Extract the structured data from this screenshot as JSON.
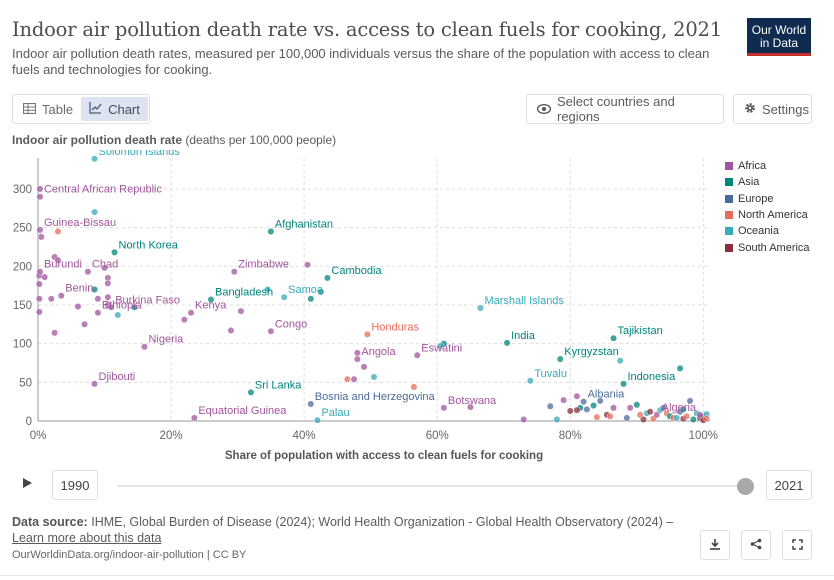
{
  "header": {
    "title": "Indoor air pollution death rate vs. access to clean fuels for cooking, 2021",
    "subtitle": "Indoor air pollution death rates, measured per 100,000 individuals versus the share of the population with access to clean fuels and technologies for cooking.",
    "logo_line1": "Our World",
    "logo_line2": "in Data"
  },
  "toolbar": {
    "table_label": "Table",
    "chart_label": "Chart",
    "select_label": "Select countries and regions",
    "settings_label": "Settings"
  },
  "colors": {
    "Africa": "#a2559c",
    "Asia": "#00847e",
    "Europe": "#4c6a9c",
    "North America": "#e56e5a",
    "Oceania": "#38aaba",
    "South America": "#883039"
  },
  "chart_data": {
    "type": "scatter",
    "ylabel_bold": "Indoor air pollution death rate",
    "ylabel_rest": "(deaths per 100,000 people)",
    "xlabel": "Share of population with access to clean fuels for cooking",
    "xlim": [
      0,
      101
    ],
    "ylim": [
      0,
      340
    ],
    "x_ticks": [
      {
        "v": 0,
        "label": "0%"
      },
      {
        "v": 20,
        "label": "20%"
      },
      {
        "v": 40,
        "label": "40%"
      },
      {
        "v": 60,
        "label": "60%"
      },
      {
        "v": 80,
        "label": "80%"
      },
      {
        "v": 100,
        "label": "100%"
      }
    ],
    "y_ticks": [
      {
        "v": 0,
        "label": "0"
      },
      {
        "v": 50,
        "label": "50"
      },
      {
        "v": 100,
        "label": "100"
      },
      {
        "v": 150,
        "label": "150"
      },
      {
        "v": 200,
        "label": "200"
      },
      {
        "v": 250,
        "label": "250"
      },
      {
        "v": 300,
        "label": "300"
      }
    ],
    "grid": true,
    "legend": [
      "Africa",
      "Asia",
      "Europe",
      "North America",
      "Oceania",
      "South America"
    ],
    "legend_position": "right",
    "points": [
      {
        "x": 8.5,
        "y": 339,
        "r": "Oceania",
        "label": "Solomon Islands"
      },
      {
        "x": 0.3,
        "y": 290,
        "r": "Africa",
        "label": "Central African Republic"
      },
      {
        "x": 0.3,
        "y": 247,
        "r": "Africa",
        "label": "Guinea-Bissau"
      },
      {
        "x": 0.3,
        "y": 193,
        "r": "Africa",
        "label": "Burundi"
      },
      {
        "x": 7.5,
        "y": 193,
        "r": "Africa",
        "label": "Chad"
      },
      {
        "x": 11.5,
        "y": 218,
        "r": "Asia",
        "label": "North Korea"
      },
      {
        "x": 3.5,
        "y": 162,
        "r": "Africa",
        "label": "Benin"
      },
      {
        "x": 11,
        "y": 147,
        "r": "Africa",
        "label": "Burkina Faso"
      },
      {
        "x": 9,
        "y": 140,
        "r": "Africa",
        "label": "Ethiopia"
      },
      {
        "x": 16,
        "y": 96,
        "r": "Africa",
        "label": "Nigeria"
      },
      {
        "x": 8.5,
        "y": 48,
        "r": "Africa",
        "label": "Djibouti"
      },
      {
        "x": 35,
        "y": 245,
        "r": "Asia",
        "label": "Afghanistan"
      },
      {
        "x": 29.5,
        "y": 193,
        "r": "Africa",
        "label": "Zimbabwe"
      },
      {
        "x": 43.5,
        "y": 185,
        "r": "Asia",
        "label": "Cambodia"
      },
      {
        "x": 26,
        "y": 157,
        "r": "Asia",
        "label": "Bangladesh"
      },
      {
        "x": 37,
        "y": 160,
        "r": "Oceania",
        "label": "Samoa"
      },
      {
        "x": 23,
        "y": 140,
        "r": "Africa",
        "label": "Kenya"
      },
      {
        "x": 35,
        "y": 116,
        "r": "Africa",
        "label": "Congo"
      },
      {
        "x": 32,
        "y": 37,
        "r": "Asia",
        "label": "Sri Lanka"
      },
      {
        "x": 23.5,
        "y": 4,
        "r": "Africa",
        "label": "Equatorial Guinea"
      },
      {
        "x": 41,
        "y": 22,
        "r": "Europe",
        "label": "Bosnia and Herzegovina"
      },
      {
        "x": 42,
        "y": 1,
        "r": "Oceania",
        "label": "Palau"
      },
      {
        "x": 49.5,
        "y": 112,
        "r": "North America",
        "label": "Honduras"
      },
      {
        "x": 48,
        "y": 80,
        "r": "Africa",
        "label": "Angola"
      },
      {
        "x": 57,
        "y": 85,
        "r": "Africa",
        "label": "Eswatini"
      },
      {
        "x": 66.5,
        "y": 146,
        "r": "Oceania",
        "label": "Marshall Islands"
      },
      {
        "x": 70.5,
        "y": 101,
        "r": "Asia",
        "label": "India"
      },
      {
        "x": 61,
        "y": 17,
        "r": "Africa",
        "label": "Botswana"
      },
      {
        "x": 86.5,
        "y": 107,
        "r": "Asia",
        "label": "Tajikistan"
      },
      {
        "x": 78.5,
        "y": 80,
        "r": "Asia",
        "label": "Kyrgyzstan"
      },
      {
        "x": 74,
        "y": 52,
        "r": "Oceania",
        "label": "Tuvalu"
      },
      {
        "x": 88,
        "y": 48,
        "r": "Asia",
        "label": "Indonesia"
      },
      {
        "x": 82,
        "y": 25,
        "r": "Europe",
        "label": "Albania"
      },
      {
        "x": 99.5,
        "y": 8,
        "r": "Africa",
        "label": "Algeria"
      },
      {
        "x": 0.3,
        "y": 300,
        "r": "Africa"
      },
      {
        "x": 0.5,
        "y": 238,
        "r": "Africa"
      },
      {
        "x": 2.5,
        "y": 212,
        "r": "Africa"
      },
      {
        "x": 3,
        "y": 208,
        "r": "Africa"
      },
      {
        "x": 0.2,
        "y": 188,
        "r": "Africa"
      },
      {
        "x": 1,
        "y": 186,
        "r": "Africa"
      },
      {
        "x": 0.2,
        "y": 177,
        "r": "Africa"
      },
      {
        "x": 0.2,
        "y": 158,
        "r": "Africa"
      },
      {
        "x": 0.2,
        "y": 141,
        "r": "Africa"
      },
      {
        "x": 2,
        "y": 158,
        "r": "Africa"
      },
      {
        "x": 6,
        "y": 148,
        "r": "Africa"
      },
      {
        "x": 9,
        "y": 158,
        "r": "Africa"
      },
      {
        "x": 7,
        "y": 125,
        "r": "Africa"
      },
      {
        "x": 2.5,
        "y": 114,
        "r": "Africa"
      },
      {
        "x": 10.5,
        "y": 185,
        "r": "Africa"
      },
      {
        "x": 10.5,
        "y": 178,
        "r": "Africa"
      },
      {
        "x": 10,
        "y": 198,
        "r": "Africa"
      },
      {
        "x": 10.5,
        "y": 160,
        "r": "Africa"
      },
      {
        "x": 10.5,
        "y": 150,
        "r": "Africa"
      },
      {
        "x": 14.5,
        "y": 147,
        "r": "Asia"
      },
      {
        "x": 8.5,
        "y": 170,
        "r": "Asia"
      },
      {
        "x": 12,
        "y": 137,
        "r": "Oceania"
      },
      {
        "x": 8.5,
        "y": 270,
        "r": "Oceania"
      },
      {
        "x": 3,
        "y": 245,
        "r": "North America"
      },
      {
        "x": 40.5,
        "y": 202,
        "r": "Africa"
      },
      {
        "x": 30.5,
        "y": 142,
        "r": "Africa"
      },
      {
        "x": 29,
        "y": 117,
        "r": "Africa"
      },
      {
        "x": 22,
        "y": 131,
        "r": "Africa"
      },
      {
        "x": 34.5,
        "y": 170,
        "r": "Oceania"
      },
      {
        "x": 41,
        "y": 158,
        "r": "Asia"
      },
      {
        "x": 42.5,
        "y": 167,
        "r": "Asia"
      },
      {
        "x": 48,
        "y": 88,
        "r": "Africa"
      },
      {
        "x": 47.5,
        "y": 54,
        "r": "Africa"
      },
      {
        "x": 49,
        "y": 70,
        "r": "Africa"
      },
      {
        "x": 46.5,
        "y": 54,
        "r": "North America"
      },
      {
        "x": 50.5,
        "y": 57,
        "r": "Oceania"
      },
      {
        "x": 56.5,
        "y": 44,
        "r": "North America"
      },
      {
        "x": 61,
        "y": 100,
        "r": "Asia"
      },
      {
        "x": 60.5,
        "y": 97,
        "r": "Oceania"
      },
      {
        "x": 65,
        "y": 18,
        "r": "Africa"
      },
      {
        "x": 73,
        "y": 2,
        "r": "Africa"
      },
      {
        "x": 87.5,
        "y": 78,
        "r": "Oceania"
      },
      {
        "x": 96.5,
        "y": 68,
        "r": "Asia"
      },
      {
        "x": 81,
        "y": 32,
        "r": "Africa"
      },
      {
        "x": 81.5,
        "y": 17,
        "r": "Asia"
      },
      {
        "x": 82.5,
        "y": 15,
        "r": "Europe"
      },
      {
        "x": 80,
        "y": 13,
        "r": "South America"
      },
      {
        "x": 81,
        "y": 14,
        "r": "South America"
      },
      {
        "x": 83.5,
        "y": 20,
        "r": "Asia"
      },
      {
        "x": 84.5,
        "y": 26,
        "r": "Europe"
      },
      {
        "x": 85.5,
        "y": 8,
        "r": "South America"
      },
      {
        "x": 86,
        "y": 6,
        "r": "North America"
      },
      {
        "x": 86.5,
        "y": 17,
        "r": "Africa"
      },
      {
        "x": 89,
        "y": 17,
        "r": "Africa"
      },
      {
        "x": 90,
        "y": 21,
        "r": "Asia"
      },
      {
        "x": 90.5,
        "y": 8,
        "r": "North America"
      },
      {
        "x": 91.5,
        "y": 10,
        "r": "Oceania"
      },
      {
        "x": 92,
        "y": 12,
        "r": "South America"
      },
      {
        "x": 92.5,
        "y": 3,
        "r": "North America"
      },
      {
        "x": 93,
        "y": 8,
        "r": "Africa"
      },
      {
        "x": 93.5,
        "y": 14,
        "r": "Oceania"
      },
      {
        "x": 94,
        "y": 17,
        "r": "Europe"
      },
      {
        "x": 94.5,
        "y": 10,
        "r": "North America"
      },
      {
        "x": 95,
        "y": 6,
        "r": "Asia"
      },
      {
        "x": 95.5,
        "y": 4,
        "r": "North America"
      },
      {
        "x": 96,
        "y": 4,
        "r": "Oceania"
      },
      {
        "x": 96.5,
        "y": 12,
        "r": "Europe"
      },
      {
        "x": 97,
        "y": 3,
        "r": "South America"
      },
      {
        "x": 97.5,
        "y": 6,
        "r": "North America"
      },
      {
        "x": 98,
        "y": 26,
        "r": "Europe"
      },
      {
        "x": 98.5,
        "y": 2,
        "r": "Asia"
      },
      {
        "x": 99,
        "y": 10,
        "r": "Oceania"
      },
      {
        "x": 99.5,
        "y": 4,
        "r": "South America"
      },
      {
        "x": 100,
        "y": 6,
        "r": "Europe"
      },
      {
        "x": 100,
        "y": 1,
        "r": "South America"
      },
      {
        "x": 100.5,
        "y": 9,
        "r": "Oceania"
      },
      {
        "x": 100.5,
        "y": 3,
        "r": "North America"
      },
      {
        "x": 77,
        "y": 19,
        "r": "Europe"
      },
      {
        "x": 79,
        "y": 27,
        "r": "Africa"
      },
      {
        "x": 78,
        "y": 2,
        "r": "Oceania"
      },
      {
        "x": 84,
        "y": 5,
        "r": "North America"
      },
      {
        "x": 88.5,
        "y": 4,
        "r": "Europe"
      },
      {
        "x": 91,
        "y": 2,
        "r": "South America"
      },
      {
        "x": 97,
        "y": 15,
        "r": "Asia"
      }
    ]
  },
  "timeline": {
    "start_year": "1990",
    "end_year": "2021",
    "progress": 1.0
  },
  "footer": {
    "source_bold": "Data source:",
    "source_text": "IHME, Global Burden of Disease (2024); World Health Organization - Global Health Observatory (2024) –",
    "learn_more": "Learn more about this data",
    "url_line": "OurWorldinData.org/indoor-air-pollution | CC BY"
  }
}
